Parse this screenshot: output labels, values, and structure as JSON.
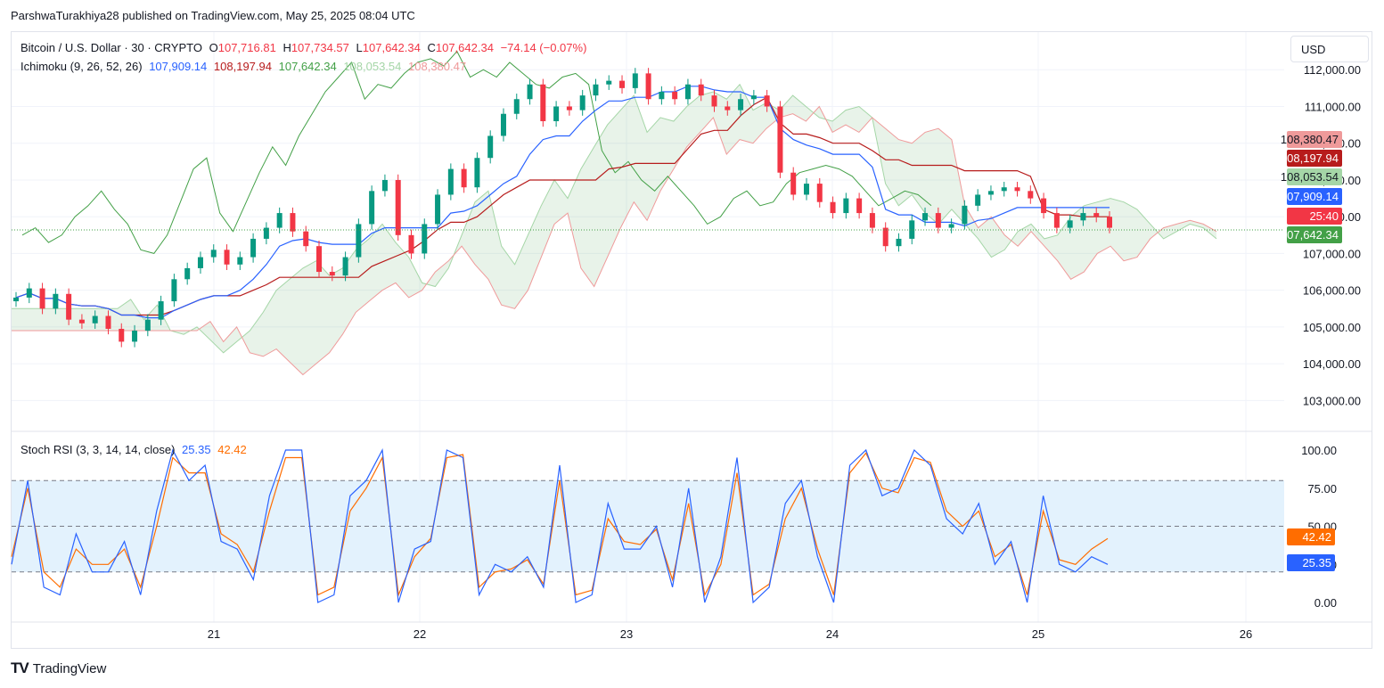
{
  "header": {
    "text": "ParshwaTurakhiya28 published on TradingView.com, May 25, 2025 08:04 UTC"
  },
  "legend": {
    "symbol": "Bitcoin / U.S. Dollar · 30 · CRYPTO",
    "o_label": "O",
    "o": "107,716.81",
    "h_label": "H",
    "h": "107,734.57",
    "l_label": "L",
    "l": "107,642.34",
    "c_label": "C",
    "c": "107,642.34",
    "change": "−74.14 (−0.07%)",
    "ichimoku_label": "Ichimoku (9, 26, 52, 26)",
    "ichimoku_values": [
      "107,909.14",
      "108,197.94",
      "107,642.34",
      "108,053.54",
      "108,380.47"
    ],
    "stoch_label": "Stoch RSI (3, 3, 14, 14, close)",
    "stoch_values": [
      "25.35",
      "42.42"
    ]
  },
  "currency": "USD",
  "colors": {
    "up": "#089981",
    "down": "#f23645",
    "conversion": "#2962ff",
    "base": "#b71c1c",
    "lagging": "#43a047",
    "span_a": "#a5d6a7",
    "span_b": "#ef9a9a",
    "k": "#2962ff",
    "d": "#ff6d00",
    "band": "#e3f2fd"
  },
  "price_axis": {
    "ticks": [
      "112,000.00",
      "111,000.00",
      "110,000.00",
      "109,000.00",
      "108,000.00",
      "107,000.00",
      "106,000.00",
      "105,000.00",
      "104,000.00",
      "103,000.00"
    ]
  },
  "rsi_axis": {
    "ticks": [
      "100.00",
      "75.00",
      "50.00",
      "25.00",
      "0.00"
    ]
  },
  "time_axis": {
    "ticks": [
      "21",
      "22",
      "23",
      "24",
      "25",
      "26"
    ]
  },
  "price_labels": [
    {
      "text": "108,380.47",
      "bg": "#ef9a9a",
      "fg": "#131722"
    },
    {
      "text": "108,197.94",
      "bg": "#b71c1c",
      "fg": "#ffffff"
    },
    {
      "text": "108,053.54",
      "bg": "#a5d6a7",
      "fg": "#131722"
    },
    {
      "text": "107,909.14",
      "bg": "#2962ff",
      "fg": "#ffffff"
    },
    {
      "text": "25:40",
      "bg": "#f23645",
      "fg": "#ffffff"
    },
    {
      "text": "107,642.34",
      "bg": "#43a047",
      "fg": "#ffffff"
    }
  ],
  "rsi_labels": [
    {
      "text": "42.42",
      "bg": "#ff6d00",
      "fg": "#ffffff"
    },
    {
      "text": "25.35",
      "bg": "#2962ff",
      "fg": "#ffffff"
    }
  ],
  "footer": {
    "brand": "TradingView"
  },
  "chart_data": {
    "type": "line",
    "price_ylim": [
      102500,
      112200
    ],
    "price_series": {
      "close": [
        105800,
        106050,
        105500,
        105900,
        105200,
        105100,
        105300,
        104950,
        104600,
        104900,
        105200,
        105700,
        106300,
        106600,
        106900,
        107100,
        106700,
        106900,
        107400,
        107700,
        108100,
        107600,
        107200,
        106500,
        106400,
        106900,
        107800,
        108700,
        109000,
        107500,
        107000,
        107800,
        108600,
        109300,
        108800,
        109600,
        110200,
        110800,
        111200,
        111600,
        110600,
        111000,
        110900,
        111300,
        111600,
        111700,
        111500,
        111900,
        111200,
        111400,
        111200,
        111600,
        111300,
        111000,
        110900,
        111200,
        111300,
        111000,
        109200,
        108600,
        108900,
        108400,
        108100,
        108500,
        108100,
        107700,
        107200,
        107400,
        107900,
        108100,
        107700,
        107800,
        108300,
        108600,
        108700,
        108800,
        108700,
        108500,
        108100,
        107700,
        107900,
        108100,
        108000,
        107700
      ]
    },
    "rsi_series": {
      "k": [
        25,
        80,
        10,
        5,
        45,
        20,
        20,
        40,
        5,
        60,
        100,
        80,
        90,
        40,
        35,
        15,
        70,
        100,
        100,
        0,
        5,
        70,
        80,
        100,
        0,
        35,
        40,
        100,
        95,
        5,
        25,
        20,
        30,
        10,
        90,
        0,
        5,
        65,
        35,
        35,
        50,
        10,
        75,
        0,
        30,
        95,
        0,
        10,
        65,
        80,
        30,
        0,
        90,
        100,
        70,
        75,
        100,
        90,
        55,
        45,
        65,
        25,
        40,
        0,
        70,
        25,
        20,
        30,
        25
      ],
      "d": [
        30,
        75,
        20,
        10,
        35,
        25,
        25,
        35,
        10,
        50,
        95,
        85,
        85,
        45,
        38,
        20,
        60,
        95,
        95,
        5,
        10,
        60,
        75,
        95,
        5,
        30,
        42,
        95,
        97,
        10,
        20,
        22,
        28,
        12,
        80,
        5,
        8,
        55,
        40,
        38,
        48,
        15,
        65,
        5,
        25,
        85,
        5,
        12,
        55,
        75,
        35,
        5,
        85,
        98,
        75,
        72,
        95,
        92,
        60,
        50,
        60,
        30,
        38,
        5,
        60,
        28,
        25,
        35,
        42
      ]
    },
    "rsi_levels": [
      80,
      50,
      20
    ],
    "time_categories": [
      "21",
      "22",
      "23",
      "24",
      "25",
      "26"
    ]
  }
}
